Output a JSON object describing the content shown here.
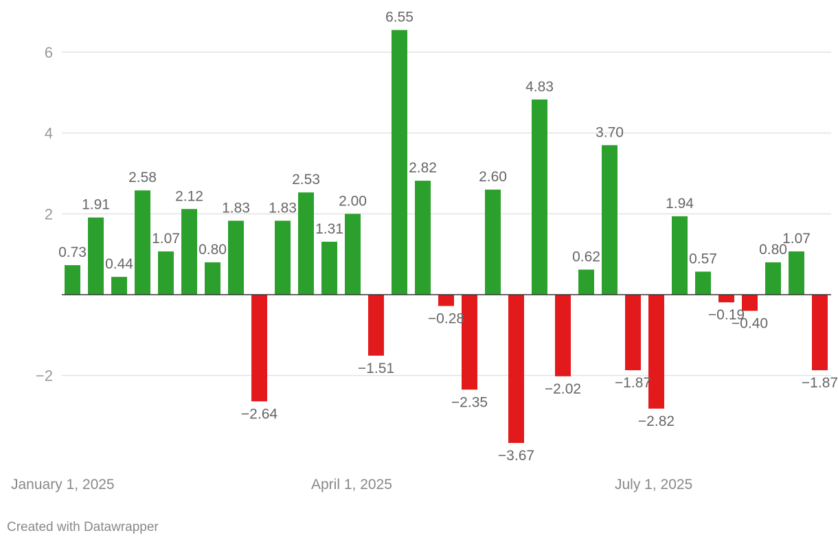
{
  "chart_data": {
    "type": "bar",
    "x": [
      "2025-01-03",
      "2025-01-10",
      "2025-01-17",
      "2025-01-24",
      "2025-01-31",
      "2025-02-07",
      "2025-02-14",
      "2025-02-21",
      "2025-02-28",
      "2025-03-07",
      "2025-03-14",
      "2025-03-21",
      "2025-03-28",
      "2025-04-04",
      "2025-04-11",
      "2025-04-18",
      "2025-04-25",
      "2025-05-02",
      "2025-05-09",
      "2025-05-16",
      "2025-05-23",
      "2025-05-30",
      "2025-06-06",
      "2025-06-13",
      "2025-06-20",
      "2025-06-27",
      "2025-07-04",
      "2025-07-11",
      "2025-07-18",
      "2025-07-25",
      "2025-08-01",
      "2025-08-08",
      "2025-08-15"
    ],
    "values": [
      0.73,
      1.91,
      0.44,
      2.58,
      1.07,
      2.12,
      0.8,
      1.83,
      -2.64,
      1.83,
      2.53,
      1.31,
      2.0,
      -1.51,
      6.55,
      2.82,
      -0.28,
      -2.35,
      2.6,
      -3.67,
      4.83,
      -2.02,
      0.62,
      3.7,
      -1.87,
      -2.82,
      1.94,
      0.57,
      -0.19,
      -0.4,
      0.8,
      1.07,
      -1.87
    ],
    "value_labels": [
      "0.73",
      "1.91",
      "0.44",
      "2.58",
      "1.07",
      "2.12",
      "0.80",
      "1.83",
      "−2.64",
      "1.83",
      "2.53",
      "1.31",
      "2.00",
      "−1.51",
      "6.55",
      "2.82",
      "−0.28",
      "−2.35",
      "2.60",
      "−3.67",
      "4.83",
      "−2.02",
      "0.62",
      "3.70",
      "−1.87",
      "−2.82",
      "1.94",
      "0.57",
      "−0.19",
      "−0.40",
      "0.80",
      "1.07",
      "−1.87"
    ],
    "ylim": [
      -3.67,
      6.55
    ],
    "y_ticks": [
      {
        "value": 6,
        "label": "6"
      },
      {
        "value": 4,
        "label": "4"
      },
      {
        "value": 2,
        "label": "2"
      },
      {
        "value": -2,
        "label": "−2"
      }
    ],
    "x_ticks": [
      {
        "date": "2025-01-01",
        "label": "January 1, 2025"
      },
      {
        "date": "2025-04-01",
        "label": "April 1, 2025"
      },
      {
        "date": "2025-07-01",
        "label": "July 1, 2025"
      }
    ],
    "colors": {
      "positive": "#2ca02c",
      "negative": "#e31a1c"
    },
    "grid": true,
    "title": "",
    "xlabel": "",
    "ylabel": ""
  },
  "footer": {
    "credit": "Created with Datawrapper"
  }
}
